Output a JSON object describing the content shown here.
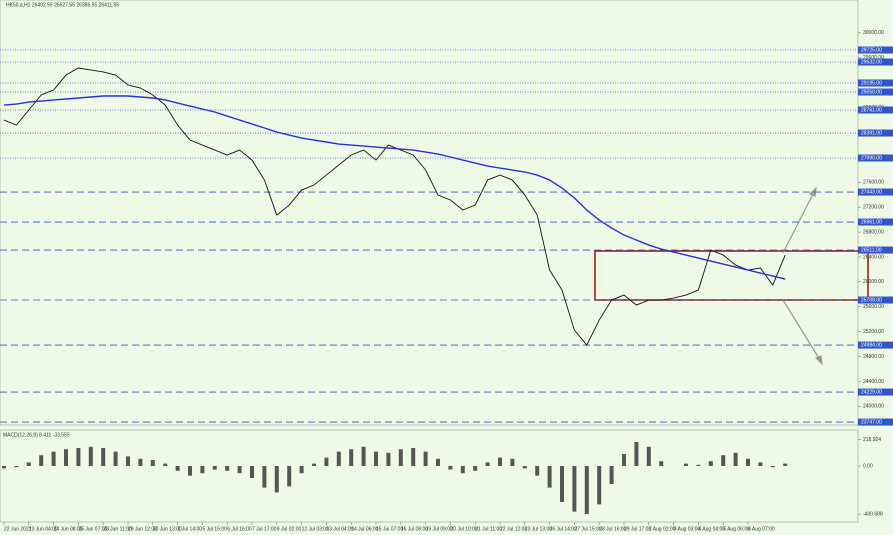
{
  "chart_data": {
    "type": "line",
    "title": "HK50.a,H1  26402.55 26527.55 26386.55 26411.55",
    "indicator_title": "MACD(12,26,9) 8.411 -33.555",
    "categories": [
      "22 Jun 2021",
      null,
      "23 Jun 04:00",
      null,
      "24 Jun 08:00",
      null,
      "25 Jun 07:00",
      null,
      "28 Jun 11:00",
      null,
      "29 Jun 12:00",
      null,
      "30 Jun 13:00",
      null,
      "2 Jul 14:00",
      null,
      "5 Jul 15:00",
      null,
      "6 Jul 16:00",
      null,
      "7 Jul 17:00",
      null,
      "9 Jul 02:00",
      null,
      "12 Jul 03:00",
      null,
      "13 Jul 04:00",
      null,
      "14 Jul 06:00",
      null,
      "15 Jul 07:00",
      null,
      "16 Jul 08:00",
      null,
      "19 Jul 09:00",
      null,
      "20 Jul 10:00",
      null,
      "21 Jul 11:00",
      null,
      "22 Jul 12:00",
      null,
      "23 Jul 13:00",
      null,
      "26 Jul 14:00",
      null,
      "27 Jul 15:00",
      null,
      "28 Jul 16:00",
      null,
      "29 Jul 17:00",
      null,
      "2 Aug 02:00",
      null,
      "3 Aug 03:00",
      null,
      "4 Aug 04:00",
      null,
      "5 Aug 06:00",
      null,
      "6 Aug 07:00",
      null,
      null,
      null
    ],
    "series": [
      {
        "name": "HK50.a",
        "color": "#111111",
        "values": [
          28600,
          28520,
          28761,
          29002,
          29082,
          29323,
          29436,
          29404,
          29372,
          29323,
          29163,
          29114,
          29002,
          28841,
          28520,
          28279,
          28198,
          28118,
          28038,
          28118,
          27957,
          27636,
          27073,
          27234,
          27475,
          27556,
          27716,
          27877,
          28038,
          28118,
          27957,
          28198,
          28118,
          28038,
          27797,
          27395,
          27315,
          27154,
          27234,
          27636,
          27716,
          27636,
          27395,
          27073,
          26190,
          25868,
          25225,
          24984,
          25386,
          25708,
          25788,
          25627,
          25708,
          25708,
          25740,
          25788,
          25868,
          26511,
          26431,
          26270,
          26190,
          26222,
          25949,
          26431
        ]
      },
      {
        "name": "MA",
        "color": "#2233dd",
        "values": [
          28841,
          28857,
          28889,
          28905,
          28922,
          28938,
          28954,
          28970,
          28986,
          28986,
          28986,
          28970,
          28954,
          28922,
          28873,
          28825,
          28777,
          28729,
          28664,
          28600,
          28536,
          28472,
          28407,
          28359,
          28311,
          28279,
          28247,
          28214,
          28198,
          28182,
          28166,
          28150,
          28134,
          28118,
          28086,
          28054,
          28006,
          27957,
          27909,
          27861,
          27829,
          27797,
          27765,
          27716,
          27636,
          27507,
          27347,
          27154,
          26993,
          26865,
          26752,
          26672,
          26591,
          26527,
          26479,
          26431,
          26382,
          26334,
          26286,
          26238,
          26190,
          26141,
          26093,
          26045
        ]
      }
    ],
    "macd": {
      "color": "#555555",
      "values": [
        -20,
        -10,
        30,
        90,
        120,
        140,
        150,
        160,
        150,
        120,
        80,
        60,
        50,
        20,
        -40,
        -80,
        -60,
        -30,
        -40,
        -60,
        -100,
        -180,
        -220,
        -170,
        -60,
        20,
        70,
        120,
        140,
        160,
        120,
        110,
        140,
        150,
        120,
        60,
        -30,
        -60,
        -40,
        30,
        70,
        60,
        -20,
        -80,
        -180,
        -300,
        -380,
        -400,
        -320,
        -150,
        100,
        200,
        160,
        40,
        0,
        20,
        10,
        40,
        90,
        110,
        60,
        30,
        -10,
        20
      ]
    },
    "ylim": [
      23700,
      30400
    ],
    "yticks": [
      {
        "value": 24000,
        "label": "24000.00"
      },
      {
        "value": 24400,
        "label": "24400.00"
      },
      {
        "value": 24800,
        "label": "24800.00"
      },
      {
        "value": 25200,
        "label": "25200.00"
      },
      {
        "value": 25600,
        "label": "25600.00"
      },
      {
        "value": 26000,
        "label": "26000.00"
      },
      {
        "value": 26400,
        "label": "26400.00"
      },
      {
        "value": 26800,
        "label": "26800.00"
      },
      {
        "value": 27200,
        "label": "27200.00"
      },
      {
        "value": 27600,
        "label": "27600.00"
      },
      {
        "value": 28000,
        "label": "28000.00"
      },
      {
        "value": 28400,
        "label": "28400.00"
      },
      {
        "value": 28800,
        "label": "28800.00"
      },
      {
        "value": 29200,
        "label": "29200.00"
      },
      {
        "value": 29600,
        "label": "29600.00"
      },
      {
        "value": 30000,
        "label": "30000.00"
      }
    ],
    "dotted_levels": [
      {
        "value": 29725,
        "label": "29725.00"
      },
      {
        "value": 29532,
        "label": "29532.00"
      },
      {
        "value": 29195,
        "label": "29195.00"
      },
      {
        "value": 29050,
        "label": "29050.00"
      },
      {
        "value": 28761,
        "label": "28761.00"
      },
      {
        "value": 28391,
        "label": "28391.00"
      },
      {
        "value": 27990,
        "label": "27990.00"
      }
    ],
    "dashed_levels": [
      {
        "value": 27443,
        "label": "27443.00"
      },
      {
        "value": 26961,
        "label": "26961.00"
      },
      {
        "value": 26511,
        "label": "26511.00"
      },
      {
        "value": 25708,
        "label": "25708.00"
      },
      {
        "value": 24984,
        "label": "24984.00"
      },
      {
        "value": 24229,
        "label": "24229.00"
      },
      {
        "value": 23747,
        "label": "23747.00"
      }
    ],
    "level_color": "#3355cc",
    "y2lim": [
      -450,
      250
    ],
    "y2ticks": [
      {
        "value": 218.924,
        "label": "218.924"
      },
      {
        "value": 0,
        "label": "0.00"
      },
      {
        "value": -400.688,
        "label": "-400.688"
      }
    ]
  }
}
